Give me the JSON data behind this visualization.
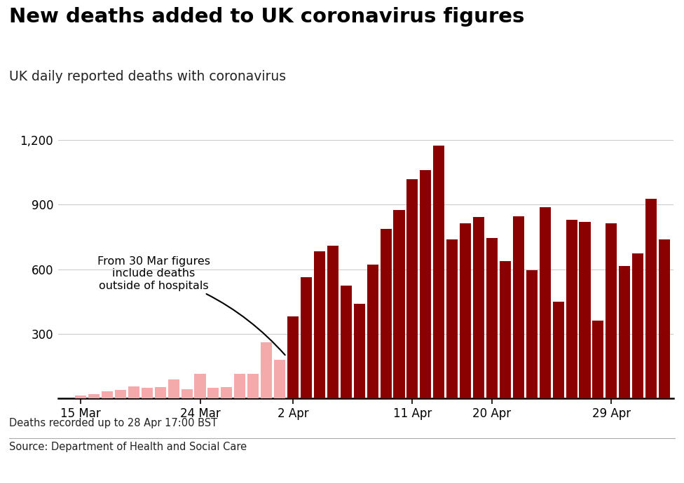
{
  "title": "New deaths added to UK coronavirus figures",
  "subtitle": "UK daily reported deaths with coronavirus",
  "footnote": "Deaths recorded up to 28 Apr 17:00 BST",
  "source": "Source: Department of Health and Social Care",
  "ylim": [
    0,
    1300
  ],
  "yticks": [
    0,
    300,
    600,
    900,
    1200
  ],
  "color_light": "#f4aaaa",
  "color_dark": "#8b0000",
  "annotation_text": "From 30 Mar figures\ninclude deaths\noutside of hospitals",
  "values": [
    2,
    14,
    20,
    33,
    40,
    56,
    48,
    54,
    87,
    43,
    115,
    48,
    54,
    115,
    115,
    260,
    181,
    381,
    563,
    684,
    708,
    524,
    439,
    621,
    786,
    875,
    1019,
    1059,
    1172,
    737,
    813,
    843,
    744,
    638,
    847,
    596,
    888,
    449,
    828,
    820,
    360,
    813,
    616,
    674,
    928,
    739
  ],
  "is_dark": [
    false,
    false,
    false,
    false,
    false,
    false,
    false,
    false,
    false,
    false,
    false,
    false,
    false,
    false,
    false,
    false,
    false,
    true,
    true,
    true,
    true,
    true,
    true,
    true,
    true,
    true,
    true,
    true,
    true,
    true,
    true,
    true,
    true,
    true,
    true,
    true,
    true,
    true,
    true,
    true,
    true,
    true,
    true,
    true,
    true,
    true
  ],
  "xtick_positions": [
    1,
    10,
    17,
    26,
    32,
    41
  ],
  "xtick_labels": [
    "15 Mar",
    "24 Mar",
    "2 Apr",
    "11 Apr",
    "20 Apr",
    "29 Apr"
  ]
}
